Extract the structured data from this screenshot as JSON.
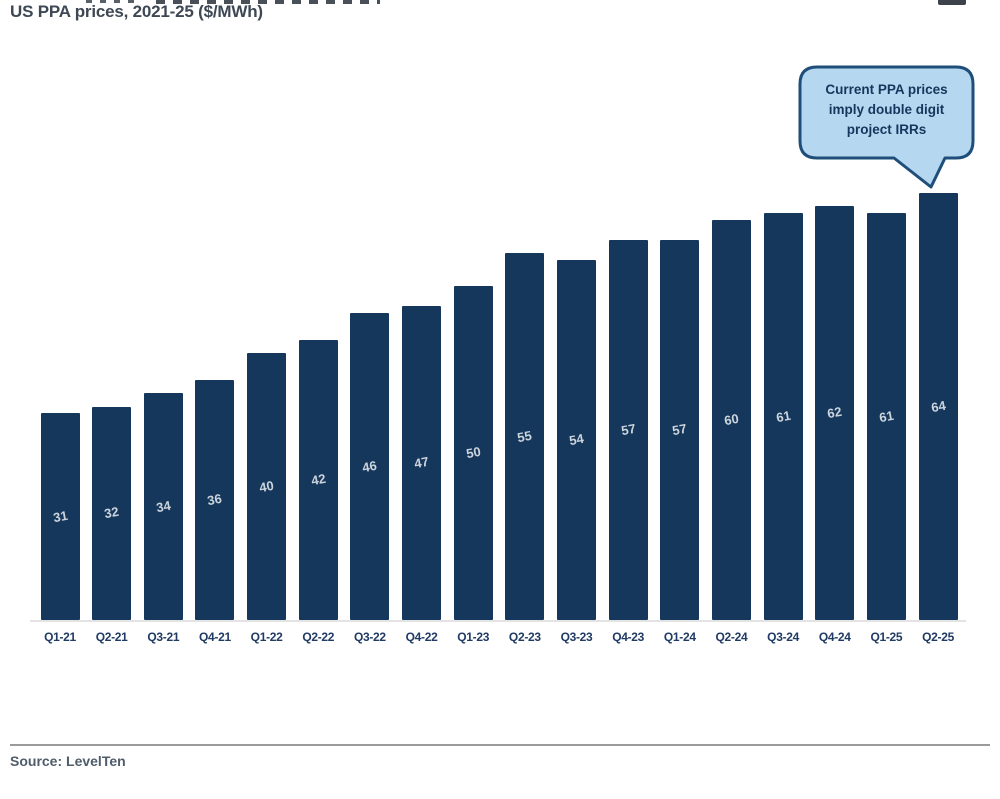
{
  "title": "US PPA prices, 2021-25 ($/MWh)",
  "callout": {
    "lines": [
      "Current PPA prices",
      "imply double digit",
      "project IRRs"
    ]
  },
  "source": "Source: LevelTen",
  "colors": {
    "bar": "#15375c",
    "bar_label": "#ccd4dc",
    "axis_label": "#1f3a63",
    "title": "#3e4855",
    "callout_fill": "#b5d8f0",
    "callout_border": "#1e4e79",
    "callout_text": "#17365d",
    "baseline": "#e3e3e3",
    "rule": "#9b9b9b",
    "source_text": "#4f5d6b"
  },
  "chart_data": {
    "type": "bar",
    "title": "US PPA prices, 2021-25 ($/MWh)",
    "categories": [
      "Q1-21",
      "Q2-21",
      "Q3-21",
      "Q4-21",
      "Q1-22",
      "Q2-22",
      "Q3-22",
      "Q4-22",
      "Q1-23",
      "Q2-23",
      "Q3-23",
      "Q4-23",
      "Q1-24",
      "Q2-24",
      "Q3-24",
      "Q4-24",
      "Q1-25",
      "Q2-25"
    ],
    "values": [
      31,
      32,
      34,
      36,
      40,
      42,
      46,
      47,
      50,
      55,
      54,
      57,
      57,
      60,
      61,
      62,
      61,
      64
    ],
    "xlabel": "",
    "ylabel": "",
    "ylim": [
      0,
      64
    ],
    "grid": false,
    "legend": false,
    "data_labels": true,
    "annotation": "Current PPA prices imply double digit project IRRs",
    "source": "LevelTen"
  }
}
